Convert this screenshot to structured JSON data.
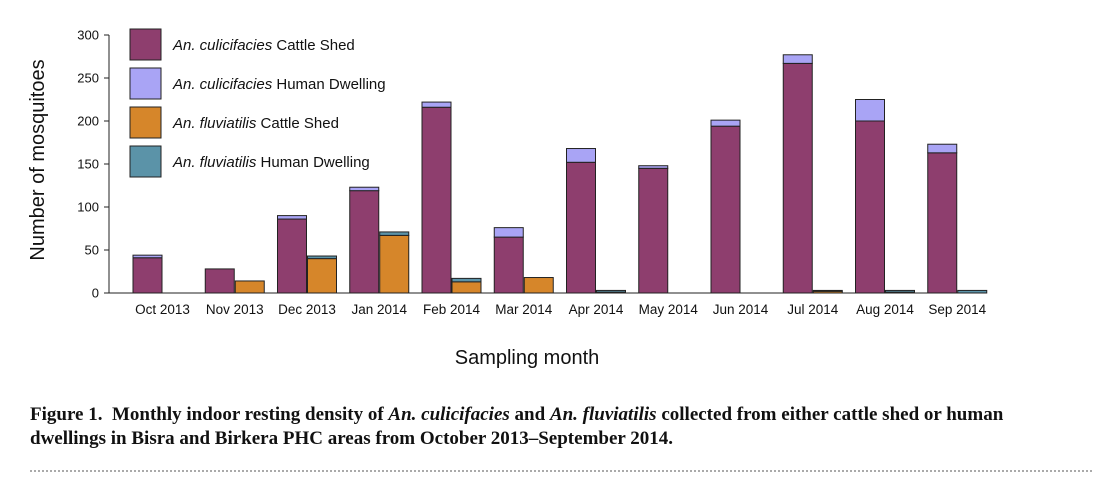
{
  "chart_data": {
    "type": "bar",
    "categories": [
      "Oct 2013",
      "Nov 2013",
      "Dec 2013",
      "Jan 2014",
      "Feb 2014",
      "Mar 2014",
      "Apr 2014",
      "May 2014",
      "Jun 2014",
      "Jul 2014",
      "Aug 2014",
      "Sep 2014"
    ],
    "xlabel": "Sampling month",
    "ylabel": "Number of mosquitoes",
    "ylim": [
      0,
      300
    ],
    "yticks": [
      0,
      50,
      100,
      150,
      200,
      250,
      300
    ],
    "legend_position": "top-left",
    "grid": false,
    "groups": [
      {
        "name": "An. culicifacies",
        "stacked": true
      },
      {
        "name": "An. fluviatilis",
        "stacked": true
      }
    ],
    "series": [
      {
        "species": "An. culicifacies",
        "site": "Cattle Shed",
        "group": 0,
        "color": "#8e3e6e",
        "values": [
          41,
          28,
          86,
          119,
          216,
          65,
          152,
          145,
          194,
          267,
          200,
          163
        ]
      },
      {
        "species": "An. culicifacies",
        "site": "Human Dwelling",
        "group": 0,
        "color": "#a9a4f5",
        "values": [
          3,
          0,
          4,
          4,
          6,
          11,
          16,
          3,
          7,
          10,
          25,
          10
        ]
      },
      {
        "species": "An. fluviatilis",
        "site": "Cattle Shed",
        "group": 1,
        "color": "#d6862a",
        "values": [
          0,
          14,
          40,
          67,
          13,
          18,
          1,
          0,
          0,
          2,
          1,
          0
        ]
      },
      {
        "species": "An. fluviatilis",
        "site": "Human Dwelling",
        "group": 1,
        "color": "#5b93a8",
        "values": [
          0,
          0,
          3,
          4,
          4,
          0,
          2,
          0,
          0,
          1,
          2,
          3
        ]
      }
    ]
  },
  "caption": {
    "label": "Figure 1.",
    "text_1": "Monthly indoor resting density of ",
    "species_1": "An. culicifacies",
    "text_2": " and ",
    "species_2": "An. fluviatilis",
    "text_3": " collected from either cattle shed or human dwellings in Bisra and Birkera PHC areas from October 2013–September 2014."
  }
}
